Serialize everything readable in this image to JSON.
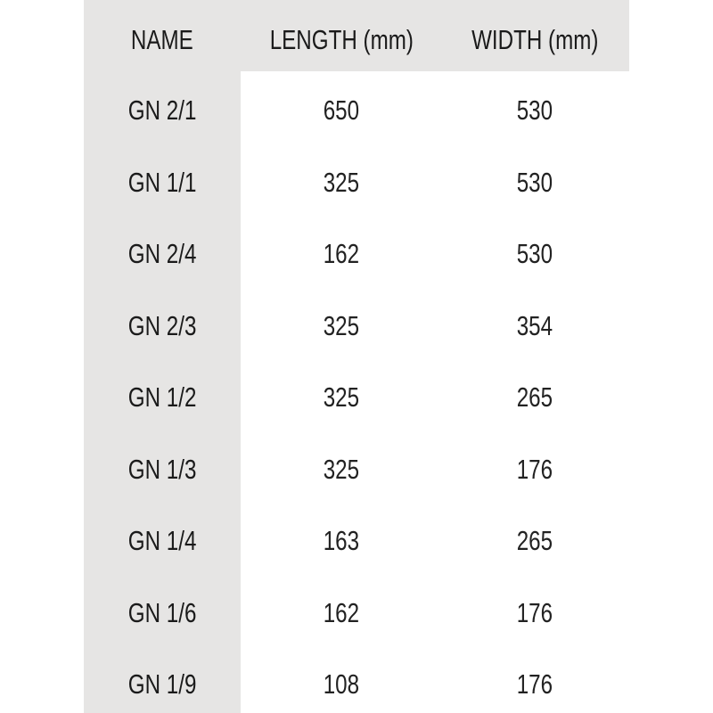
{
  "table": {
    "headers": [
      "NAME",
      "LENGTH (mm)",
      "WIDTH (mm)"
    ],
    "rows": [
      [
        "GN 2/1",
        "650",
        "530"
      ],
      [
        "GN 1/1",
        "325",
        "530"
      ],
      [
        "GN 2/4",
        "162",
        "530"
      ],
      [
        "GN 2/3",
        "325",
        "354"
      ],
      [
        "GN 1/2",
        "325",
        "265"
      ],
      [
        "GN 1/3",
        "325",
        "176"
      ],
      [
        "GN 1/4",
        "163",
        "265"
      ],
      [
        "GN 1/6",
        "162",
        "176"
      ],
      [
        "GN 1/9",
        "108",
        "176"
      ]
    ]
  },
  "colors": {
    "header_background": "#e6e5e4",
    "body_background": "#ffffff",
    "text": "#1a1a1a"
  }
}
